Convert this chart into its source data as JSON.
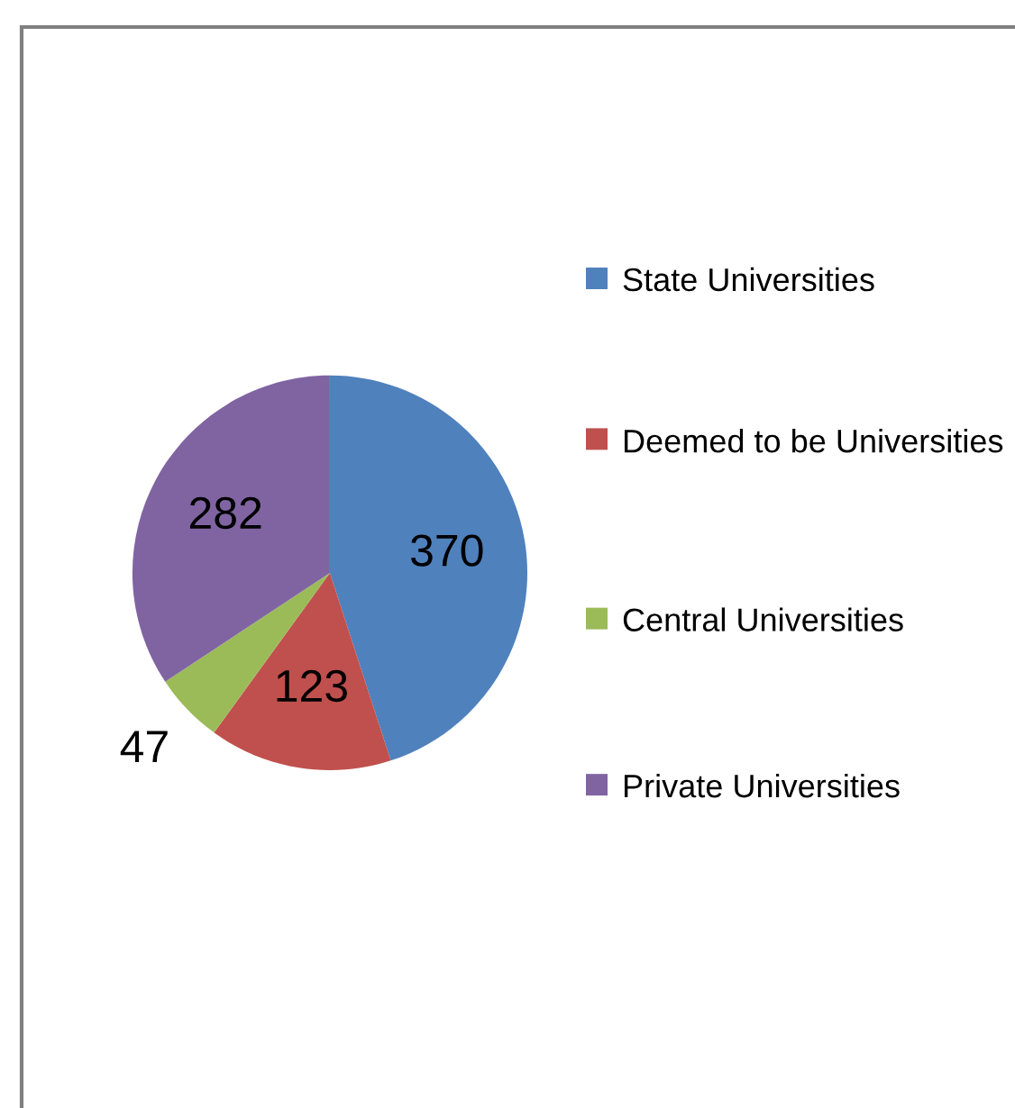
{
  "chart_data": {
    "type": "pie",
    "categories": [
      "State Universities",
      "Deemed to be Universities",
      "Central Universities",
      "Private Universities"
    ],
    "values": [
      370,
      123,
      47,
      282
    ],
    "colors": [
      "#4f81bd",
      "#c0504d",
      "#9bbb59",
      "#8064a2"
    ],
    "data_labels": true,
    "legend": "right"
  }
}
